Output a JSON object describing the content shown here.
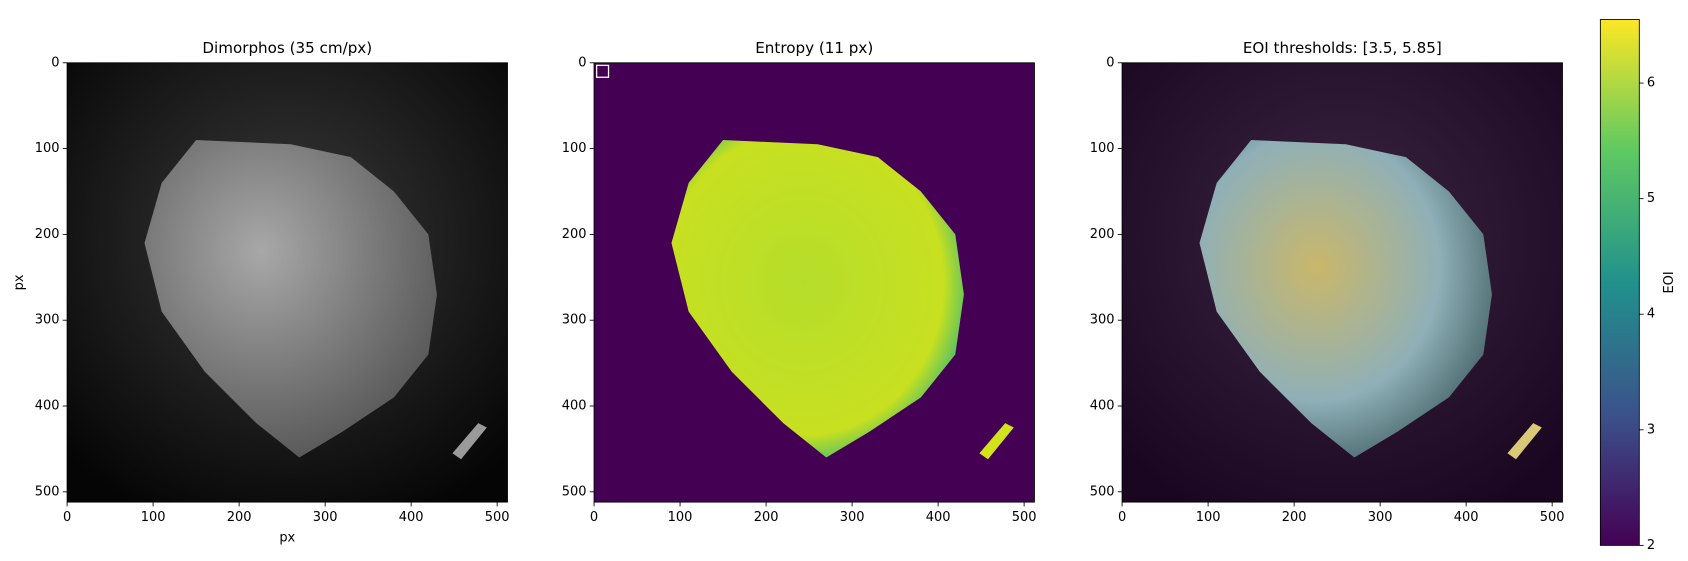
{
  "chart_data": [
    {
      "type": "image",
      "title": "Dimorphos (35 cm/px)",
      "xlabel": "px",
      "ylabel": "px",
      "xlim": [
        0,
        512
      ],
      "ylim": [
        512,
        0
      ],
      "xticks": [
        0,
        100,
        200,
        300,
        400,
        500
      ],
      "yticks": [
        0,
        100,
        200,
        300,
        400,
        500
      ]
    },
    {
      "type": "image",
      "title": "Entropy (11 px)",
      "xlim": [
        0,
        512
      ],
      "ylim": [
        512,
        0
      ],
      "xticks": [
        0,
        100,
        200,
        300,
        400,
        500
      ],
      "yticks": [
        0,
        100,
        200,
        300,
        400,
        500
      ]
    },
    {
      "type": "image",
      "title": "EOI thresholds: [3.5, 5.85]",
      "xlim": [
        0,
        512
      ],
      "ylim": [
        512,
        0
      ],
      "xticks": [
        0,
        100,
        200,
        300,
        400,
        500
      ],
      "yticks": [
        0,
        100,
        200,
        300,
        400,
        500
      ]
    },
    {
      "type": "colorbar",
      "label": "EOI",
      "ylim": [
        2,
        6.55
      ],
      "yticks": [
        2,
        3,
        4,
        5,
        6
      ],
      "colors": [
        "#440154",
        "#3b528b",
        "#21918c",
        "#5ec962",
        "#fde725"
      ]
    }
  ]
}
